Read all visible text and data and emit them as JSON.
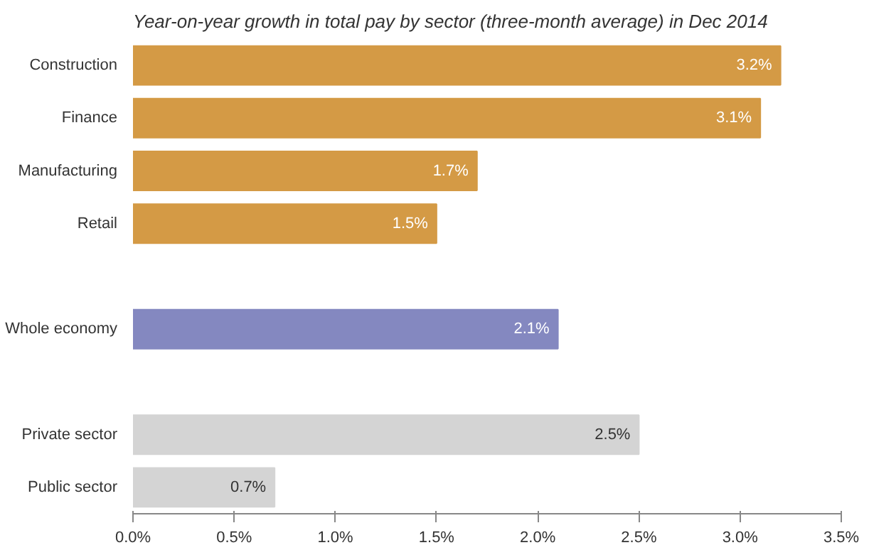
{
  "chart_data": {
    "type": "bar",
    "orientation": "horizontal",
    "title": "Year-on-year growth in total pay by sector (three-month average) in Dec 2014",
    "categories": [
      "Construction",
      "Finance",
      "Manufacturing",
      "Retail",
      null,
      "Whole economy",
      null,
      "Private sector",
      "Public sector"
    ],
    "values": [
      3.2,
      3.1,
      1.7,
      1.5,
      null,
      2.1,
      null,
      2.5,
      0.7
    ],
    "colors": [
      "#d49a45",
      "#d49a45",
      "#d49a45",
      "#d49a45",
      "#d49a45",
      "#8488c0",
      "#d4d4d4",
      "#d4d4d4",
      "#d4d4d4"
    ],
    "data_labels": true,
    "value_labels": [
      "3.2%",
      "3.1%",
      "1.7%",
      "1.5%",
      null,
      "2.1%",
      null,
      "2.5%",
      "0.7%"
    ],
    "xlim": [
      0,
      3.5
    ],
    "xticks": [
      {
        "value": 0,
        "label": "0.0%"
      },
      {
        "value": 0.5,
        "label": "0.5%"
      },
      {
        "value": 1,
        "label": "1.0%"
      },
      {
        "value": 1.5,
        "label": "1.5%"
      },
      {
        "value": 2,
        "label": "2.0%"
      },
      {
        "value": 2.5,
        "label": "2.5%"
      },
      {
        "value": 3,
        "label": "3.0%"
      },
      {
        "value": 3.5,
        "label": "3.5%"
      }
    ],
    "grid": false
  }
}
